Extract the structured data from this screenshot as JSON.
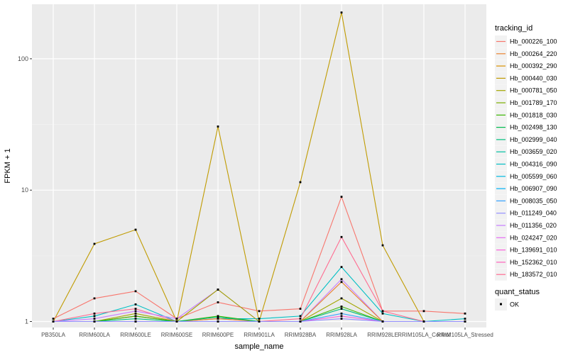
{
  "chart_data": {
    "type": "line",
    "title": "",
    "xlabel": "sample_name",
    "ylabel": "FPKM + 1",
    "y_scale": "log10",
    "ylim": [
      0.9,
      260
    ],
    "y_ticks": [
      1,
      10,
      100
    ],
    "y_tick_labels": [
      "1",
      "10",
      "100"
    ],
    "grid": true,
    "legend_position": "right",
    "categories": [
      "PB350LA",
      "RRIM600LA",
      "RRIM600LE",
      "RRIM600SE",
      "RRIM600PE",
      "RRIM901LA",
      "RRIM928BA",
      "RRIM928LA",
      "RRIM928LE",
      "RRIM105LA_Control",
      "RRIM105LA_Stressed"
    ],
    "legend_color": {
      "title": "tracking_id",
      "items": [
        {
          "label": "Hb_000226_100",
          "color": "#F8766D"
        },
        {
          "label": "Hb_000264_220",
          "color": "#EA8331"
        },
        {
          "label": "Hb_000392_290",
          "color": "#D89000"
        },
        {
          "label": "Hb_000440_030",
          "color": "#C09B00"
        },
        {
          "label": "Hb_000781_050",
          "color": "#A3A500"
        },
        {
          "label": "Hb_001789_170",
          "color": "#7CAE00"
        },
        {
          "label": "Hb_001818_030",
          "color": "#39B600"
        },
        {
          "label": "Hb_002498_130",
          "color": "#00BB4E"
        },
        {
          "label": "Hb_002999_040",
          "color": "#00BF7D"
        },
        {
          "label": "Hb_003659_020",
          "color": "#00C1A3"
        },
        {
          "label": "Hb_004316_090",
          "color": "#00BFC4"
        },
        {
          "label": "Hb_005599_060",
          "color": "#00BAE0"
        },
        {
          "label": "Hb_006907_090",
          "color": "#00B0F6"
        },
        {
          "label": "Hb_008035_050",
          "color": "#35A2FF"
        },
        {
          "label": "Hb_011249_040",
          "color": "#9590FF"
        },
        {
          "label": "Hb_011356_020",
          "color": "#C77CFF"
        },
        {
          "label": "Hb_024247_020",
          "color": "#E76BF3"
        },
        {
          "label": "Hb_139691_010",
          "color": "#FA62DB"
        },
        {
          "label": "Hb_152362_010",
          "color": "#FF62BC"
        },
        {
          "label": "Hb_183572_010",
          "color": "#FF6C91"
        }
      ]
    },
    "legend_shape": {
      "title": "quant_status",
      "items": [
        {
          "label": "OK"
        }
      ]
    },
    "point_color": "#000000",
    "series": [
      {
        "color": "#C09B00",
        "values": [
          1.0,
          3.9,
          5.0,
          1.0,
          30.5,
          1.0,
          11.5,
          225.0,
          3.8,
          1.0,
          1.0
        ]
      },
      {
        "color": "#F8766D",
        "values": [
          1.05,
          1.5,
          1.7,
          1.05,
          1.4,
          1.2,
          1.25,
          8.9,
          1.2,
          1.2,
          1.15
        ]
      },
      {
        "color": "#00BFC4",
        "values": [
          1.0,
          1.1,
          1.35,
          1.0,
          1.05,
          1.05,
          1.1,
          2.6,
          1.15,
          1.0,
          1.05
        ]
      },
      {
        "color": "#FF6C91",
        "values": [
          1.0,
          1.15,
          1.25,
          1.0,
          1.05,
          1.0,
          1.05,
          4.4,
          1.2,
          1.0,
          1.0
        ]
      },
      {
        "color": "#C77CFF",
        "values": [
          1.0,
          1.05,
          1.2,
          1.05,
          1.75,
          1.0,
          1.0,
          2.1,
          1.0,
          1.0,
          1.0
        ]
      },
      {
        "color": "#A3A500",
        "values": [
          1.0,
          1.0,
          1.15,
          1.0,
          1.75,
          1.0,
          1.0,
          1.5,
          1.0,
          1.0,
          1.0
        ]
      },
      {
        "color": "#EA8331",
        "values": [
          1.0,
          1.0,
          1.1,
          1.0,
          1.05,
          1.0,
          1.0,
          2.0,
          1.0,
          1.0,
          1.0
        ]
      },
      {
        "color": "#39B600",
        "values": [
          1.0,
          1.0,
          1.1,
          1.0,
          1.1,
          1.0,
          1.0,
          1.3,
          1.0,
          1.0,
          1.0
        ]
      },
      {
        "color": "#00BF7D",
        "values": [
          1.0,
          1.0,
          1.05,
          1.0,
          1.08,
          1.0,
          1.0,
          1.25,
          1.0,
          1.0,
          1.0
        ]
      },
      {
        "color": "#35A2FF",
        "values": [
          1.0,
          1.0,
          1.0,
          1.0,
          1.0,
          1.0,
          1.0,
          1.15,
          1.0,
          1.0,
          1.0
        ]
      },
      {
        "color": "#FA62DB",
        "values": [
          1.0,
          1.0,
          1.0,
          1.0,
          1.0,
          1.0,
          1.0,
          1.1,
          1.0,
          1.0,
          1.0
        ]
      },
      {
        "color": "#9590FF",
        "values": [
          1.0,
          1.0,
          1.0,
          1.0,
          1.0,
          1.0,
          1.0,
          1.05,
          1.0,
          1.0,
          1.0
        ]
      }
    ]
  }
}
